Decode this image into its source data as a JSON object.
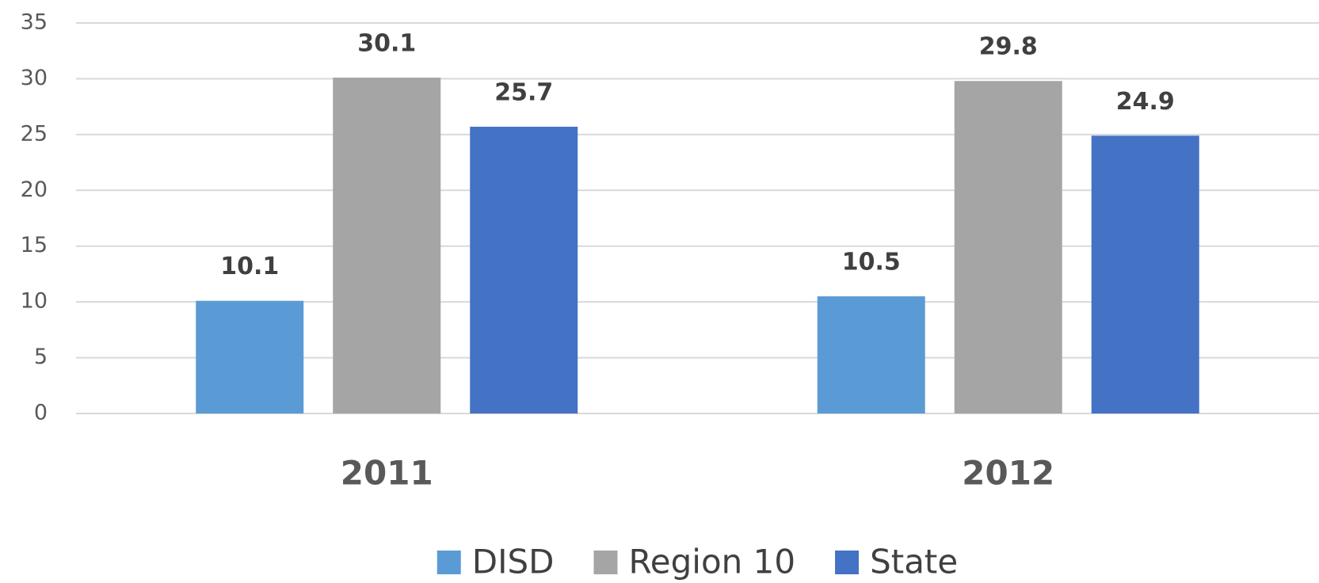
{
  "chart_data": {
    "type": "bar",
    "categories": [
      "2011",
      "2012"
    ],
    "series": [
      {
        "name": "DISD",
        "color": "#5b9bd5",
        "values": [
          10.1,
          10.5
        ]
      },
      {
        "name": "Region 10",
        "color": "#a5a5a5",
        "values": [
          30.1,
          29.8
        ]
      },
      {
        "name": "State",
        "color": "#4472c4",
        "values": [
          25.7,
          24.9
        ]
      }
    ],
    "ylim": [
      0,
      35
    ],
    "yticks": [
      0,
      5,
      10,
      15,
      20,
      25,
      30,
      35
    ],
    "grid": true,
    "legend": "bottom"
  }
}
